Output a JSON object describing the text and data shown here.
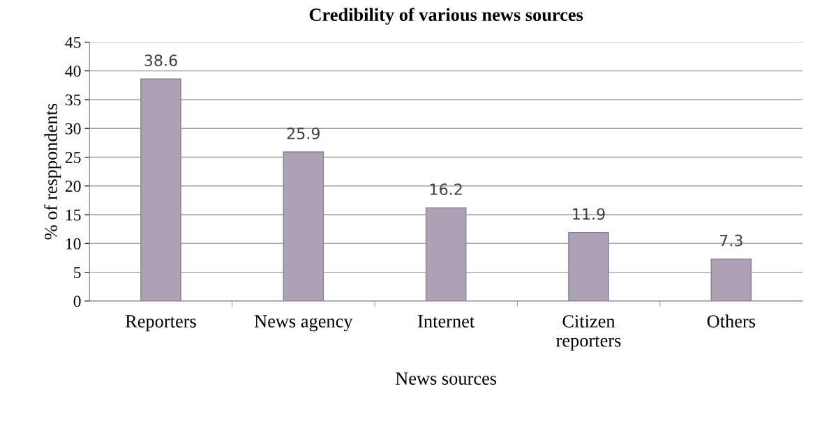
{
  "chart_data": {
    "type": "bar",
    "title": "Credibility of various news sources",
    "xlabel": "News sources",
    "ylabel": "% of resppondents",
    "categories": [
      "Reporters",
      "News agency",
      "Internet",
      "Citizen\nreporters",
      "Others"
    ],
    "values": [
      38.6,
      25.9,
      16.2,
      11.9,
      7.3
    ],
    "color": "#ada1b5",
    "data_labels": true,
    "ylim": [
      0,
      45
    ],
    "yticks": [
      0,
      5,
      10,
      15,
      20,
      25,
      30,
      35,
      40,
      45
    ],
    "grid": "y",
    "legend": false
  }
}
